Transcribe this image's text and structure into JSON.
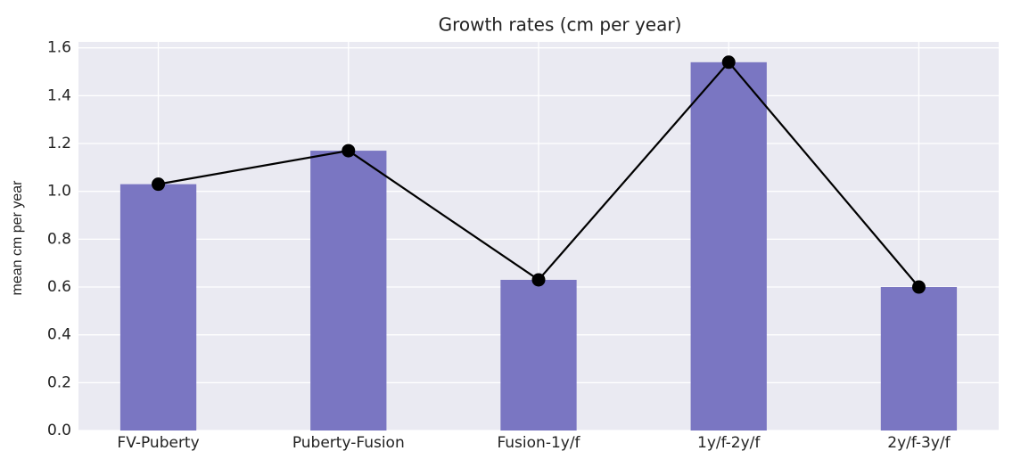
{
  "chart_data": {
    "type": "bar",
    "title": "Growth rates (cm per year)",
    "y_label": "mean cm per year",
    "categories": [
      "FV-Puberty",
      "Puberty-Fusion",
      "Fusion-1y/f",
      "1y/f-2y/f",
      "2y/f-3y/f"
    ],
    "values": [
      1.03,
      1.17,
      0.63,
      1.54,
      0.6
    ],
    "color": "#7a76c2",
    "overlay_line": true,
    "line_color": "#000000",
    "ylim": [
      0,
      1.625
    ],
    "yticks": [
      {
        "value": 0,
        "label": "0.0"
      },
      0.2,
      0.4,
      0.6,
      0.8,
      {
        "value": 1,
        "label": "1.0"
      },
      1.2,
      1.4,
      1.6
    ],
    "grid": true
  }
}
